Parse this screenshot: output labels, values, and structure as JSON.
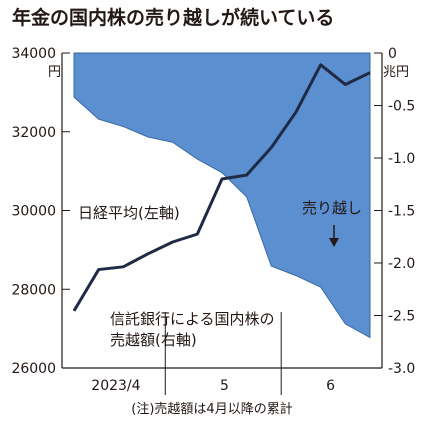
{
  "chart_data": {
    "type": "line+area",
    "title": "年金の国内株の売り越しが続いている",
    "note": "(注)売越額は4月以降の累計",
    "left_axis": {
      "unit": "円",
      "ticks": [
        "34000",
        "32000",
        "30000",
        "28000",
        "26000"
      ],
      "tick_values": [
        34000,
        32000,
        30000,
        28000,
        26000
      ],
      "ylim": [
        26000,
        34000
      ]
    },
    "right_axis": {
      "unit": "兆円",
      "ticks": [
        "0",
        "-0.5",
        "-1.0",
        "-1.5",
        "-2.0",
        "-2.5",
        "-3.0"
      ],
      "tick_values": [
        0,
        -0.5,
        -1.0,
        -1.5,
        -2.0,
        -2.5,
        -3.0
      ],
      "ylim": [
        -3.0,
        0
      ]
    },
    "x_axis": {
      "labels": [
        "2023/4",
        "5",
        "6"
      ],
      "n_points": 13
    },
    "series": [
      {
        "name": "日経平均(左軸)",
        "kind": "line",
        "axis": "left",
        "color": "#1f2a44",
        "values": [
          27450,
          28500,
          28570,
          28900,
          29200,
          29400,
          30800,
          30900,
          31600,
          32500,
          33700,
          33200,
          33500
        ]
      },
      {
        "name": "信託銀行による国内株の売越額(右軸)",
        "kind": "area",
        "axis": "right",
        "color": "#5b8fd0",
        "values": [
          -0.42,
          -0.63,
          -0.7,
          -0.8,
          -0.85,
          -1.01,
          -1.14,
          -1.37,
          -2.03,
          -2.12,
          -2.23,
          -2.58,
          -2.71
        ]
      }
    ],
    "labels": {
      "nikkei": "日経平均(左軸)",
      "sell_line1": "信託銀行による国内株の",
      "sell_line2": "売越額(右軸)",
      "urikoshi": "売り越し"
    },
    "grid": false
  }
}
